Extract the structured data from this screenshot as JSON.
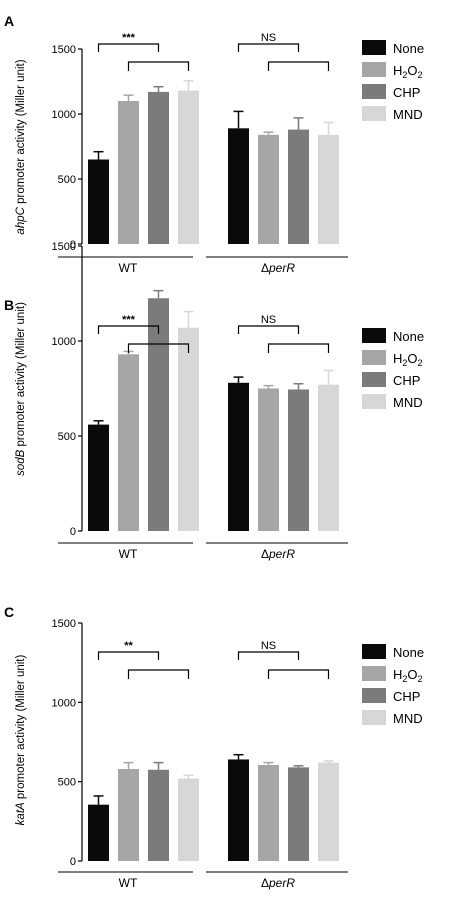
{
  "chart_data": [
    {
      "type": "bar",
      "panel": "A",
      "gene": "ahpC",
      "ylabel_suffix": " promoter activity (Miller unit)",
      "ylim": [
        0,
        1500
      ],
      "yticks": [
        "0",
        "500",
        "1000",
        "1500"
      ],
      "groups": [
        {
          "label": "WT",
          "values": [
            650,
            1100,
            1170,
            1180
          ],
          "errors": [
            60,
            45,
            40,
            75
          ]
        },
        {
          "label": "perR",
          "prefix": "Δ",
          "italic": true,
          "values": [
            890,
            840,
            880,
            840
          ],
          "errors": [
            130,
            20,
            90,
            95
          ]
        }
      ],
      "significance": [
        {
          "group": 0,
          "text": "***"
        },
        {
          "group": 1,
          "text": "NS"
        }
      ]
    },
    {
      "type": "bar",
      "panel": "B",
      "gene": "sodB",
      "ylabel_suffix": " promoter activity (Miller unit)",
      "ylim": [
        0,
        1500
      ],
      "yticks": [
        "0",
        "500",
        "1000",
        "1500"
      ],
      "groups": [
        {
          "label": "WT",
          "values": [
            560,
            930,
            1225,
            1070
          ],
          "errors": [
            20,
            15,
            40,
            85
          ]
        },
        {
          "label": "perR",
          "prefix": "Δ",
          "italic": true,
          "values": [
            780,
            750,
            745,
            770
          ],
          "errors": [
            30,
            15,
            30,
            75
          ]
        }
      ],
      "significance": [
        {
          "group": 0,
          "text": "***"
        },
        {
          "group": 1,
          "text": "NS"
        }
      ]
    },
    {
      "type": "bar",
      "panel": "C",
      "gene": "katA",
      "ylabel_suffix": " promoter activity (Miller unit)",
      "ylim": [
        0,
        1500
      ],
      "yticks": [
        "0",
        "500",
        "1000",
        "1500"
      ],
      "groups": [
        {
          "label": "WT",
          "values": [
            355,
            580,
            575,
            520
          ],
          "errors": [
            55,
            40,
            45,
            20
          ]
        },
        {
          "label": "perR",
          "prefix": "Δ",
          "italic": true,
          "values": [
            640,
            605,
            590,
            620
          ],
          "errors": [
            30,
            15,
            10,
            10
          ]
        }
      ],
      "significance": [
        {
          "group": 0,
          "text": "**"
        },
        {
          "group": 1,
          "text": "NS"
        }
      ]
    }
  ],
  "legend": [
    {
      "label": "None",
      "color": "#0a0a0a"
    },
    {
      "label": "H",
      "sub": "2",
      "label_after": "O",
      "sub_after": "2",
      "color": "#a6a6a6"
    },
    {
      "label": "CHP",
      "color": "#7b7b7b"
    },
    {
      "label": "MND",
      "color": "#d7d7d7"
    }
  ]
}
